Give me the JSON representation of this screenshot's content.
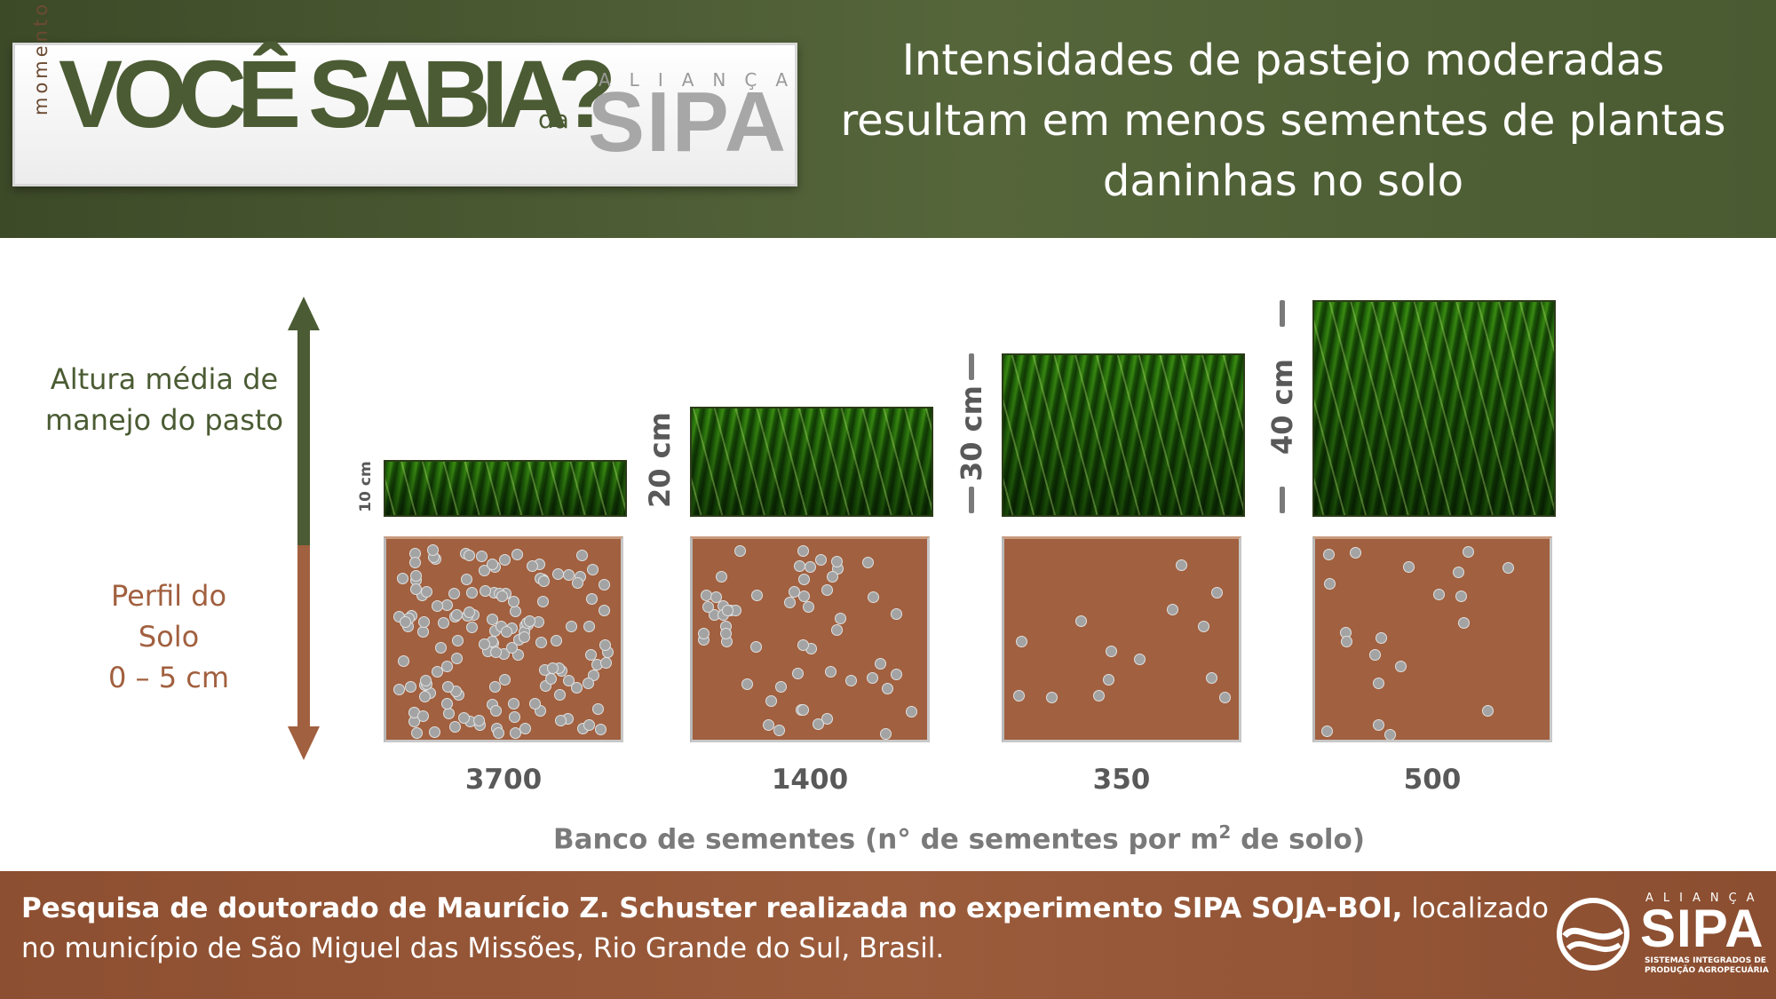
{
  "logo": {
    "momento": "momento",
    "main": "VOCÊ SABIA?",
    "da": "da",
    "alianca": "ALIANÇA",
    "sipa": "SIPA"
  },
  "headline": "Intensidades de pastejo moderadas resultam em menos sementes de plantas daninhas no solo",
  "axis_labels": {
    "pasture_height": "Altura média de manejo do pasto",
    "soil_profile_line1": "Perfil do",
    "soil_profile_line2": "Solo",
    "soil_profile_line3": "0 – 5 cm"
  },
  "colors": {
    "header_green": "#4b5b33",
    "arrow_green": "#4b5b33",
    "arrow_brown": "#a1603f",
    "soil": "#a1603f",
    "footer_brown": "#9b5c3c",
    "seed": "#a3a3a3",
    "text_gray": "#595959"
  },
  "chart_data": {
    "type": "bar",
    "categories": [
      "10 cm",
      "20 cm",
      "30 cm",
      "40 cm"
    ],
    "pasture_heights_cm": [
      10,
      20,
      30,
      40
    ],
    "values": [
      3700,
      1400,
      350,
      500
    ],
    "value_labels": [
      "3700",
      "1400",
      "350",
      "500"
    ],
    "xlabel": "Banco de sementes (n° de sementes por m",
    "xlabel_sup": "2",
    "xlabel_tail": " de solo)"
  },
  "footer": {
    "bold_text": "Pesquisa de doutorado de Maurício Z. Schuster realizada no experimento SIPA SOJA-BOI,",
    "normal_text": " localizado no município de São Miguel das Missões, Rio Grande do Sul, Brasil.",
    "logo_alianca": "ALIANÇA",
    "logo_sipa": "SIPA",
    "logo_sub1": "SISTEMAS INTEGRADOS DE",
    "logo_sub2": "PRODUÇÃO AGROPECUÁRIA",
    "logo_icon": "swirl-icon"
  }
}
